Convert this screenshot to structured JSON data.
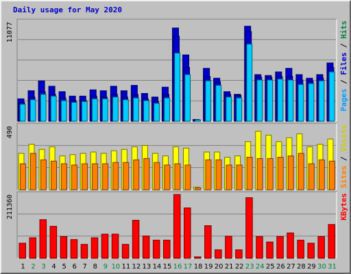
{
  "title": "Daily usage for May 2020",
  "colors": {
    "background": "#c0c0c0",
    "plot_bg": "#c0c0c0",
    "grid": "#808080",
    "title": "#0000cc",
    "hits": "#00ccff",
    "files": "#0000cc",
    "pages": "#00a0ff",
    "visits": "#ffff00",
    "sites": "#ff8000",
    "kbytes": "#ff0000",
    "day_weekday": "#000000",
    "day_weekend": "#008040"
  },
  "chart_data": [
    {
      "type": "bar",
      "name": "hits-files-pages",
      "y_max_label": "11077",
      "ylim": [
        0,
        11077
      ],
      "legend": [
        {
          "text": "Pages",
          "color": "#00a0ff"
        },
        {
          "text": " / ",
          "color": "#000000"
        },
        {
          "text": "Files",
          "color": "#0000cc"
        },
        {
          "text": " / ",
          "color": "#000000"
        },
        {
          "text": "Hits",
          "color": "#008040"
        }
      ],
      "series": [
        {
          "name": "Hits",
          "values": [
            2500,
            3400,
            4500,
            3900,
            3300,
            2800,
            2800,
            3500,
            3400,
            3900,
            3400,
            4000,
            3100,
            2700,
            3800,
            10400,
            7400,
            200,
            5900,
            4800,
            3300,
            3000,
            10600,
            5200,
            5100,
            5500,
            5900,
            5200,
            4800,
            5200,
            6500
          ]
        },
        {
          "name": "Files",
          "values": [
            2100,
            2700,
            3300,
            3000,
            2600,
            2300,
            2300,
            2800,
            2700,
            3000,
            2700,
            3000,
            2500,
            2200,
            3000,
            9500,
            6000,
            100,
            5000,
            4400,
            3000,
            2900,
            10000,
            4900,
            4900,
            5000,
            5000,
            4600,
            4500,
            4800,
            6000
          ]
        },
        {
          "name": "Pages",
          "values": [
            1900,
            2400,
            3000,
            2800,
            2300,
            2100,
            2200,
            2500,
            2500,
            2700,
            2400,
            2600,
            2300,
            2000,
            2600,
            7600,
            5200,
            50,
            4500,
            4000,
            2700,
            2600,
            8600,
            4600,
            4600,
            4700,
            4600,
            4100,
            4200,
            4500,
            5500
          ]
        }
      ]
    },
    {
      "type": "bar",
      "name": "visits-sites",
      "y_max_label": "490",
      "ylim": [
        0,
        490
      ],
      "legend": [
        {
          "text": "Sites",
          "color": "#ff8000"
        },
        {
          "text": " / ",
          "color": "#000000"
        },
        {
          "text": "Visits",
          "color": "#cccc00"
        }
      ],
      "series": [
        {
          "name": "Visits",
          "values": [
            280,
            350,
            310,
            330,
            260,
            270,
            280,
            290,
            280,
            300,
            310,
            330,
            340,
            280,
            260,
            330,
            320,
            20,
            290,
            290,
            250,
            260,
            370,
            450,
            420,
            370,
            400,
            430,
            330,
            350,
            390
          ]
        },
        {
          "name": "Sites",
          "values": [
            200,
            280,
            230,
            220,
            200,
            190,
            200,
            200,
            200,
            210,
            210,
            230,
            240,
            210,
            190,
            200,
            190,
            15,
            230,
            230,
            190,
            190,
            250,
            240,
            240,
            250,
            260,
            280,
            200,
            230,
            220
          ]
        }
      ]
    },
    {
      "type": "bar",
      "name": "kbytes",
      "y_max_label": "211360",
      "ylim": [
        0,
        211360
      ],
      "legend": [
        {
          "text": "KBytes",
          "color": "#ff0000"
        }
      ],
      "series": [
        {
          "name": "KBytes",
          "values": [
            50000,
            68000,
            128000,
            106000,
            72000,
            62000,
            46000,
            68000,
            80000,
            80000,
            46000,
            126000,
            74000,
            60000,
            60000,
            211360,
            167000,
            3000,
            108000,
            28000,
            73000,
            28000,
            201000,
            72000,
            54000,
            72000,
            84000,
            60000,
            50000,
            72000,
            112000
          ]
        }
      ]
    }
  ],
  "days": [
    "1",
    "2",
    "3",
    "4",
    "5",
    "6",
    "7",
    "8",
    "9",
    "10",
    "11",
    "12",
    "13",
    "14",
    "15",
    "16",
    "17",
    "18",
    "19",
    "20",
    "21",
    "22",
    "23",
    "24",
    "25",
    "26",
    "27",
    "28",
    "29",
    "30",
    "31"
  ],
  "weekend_days": [
    2,
    3,
    9,
    10,
    16,
    17,
    23,
    24,
    30,
    31
  ]
}
